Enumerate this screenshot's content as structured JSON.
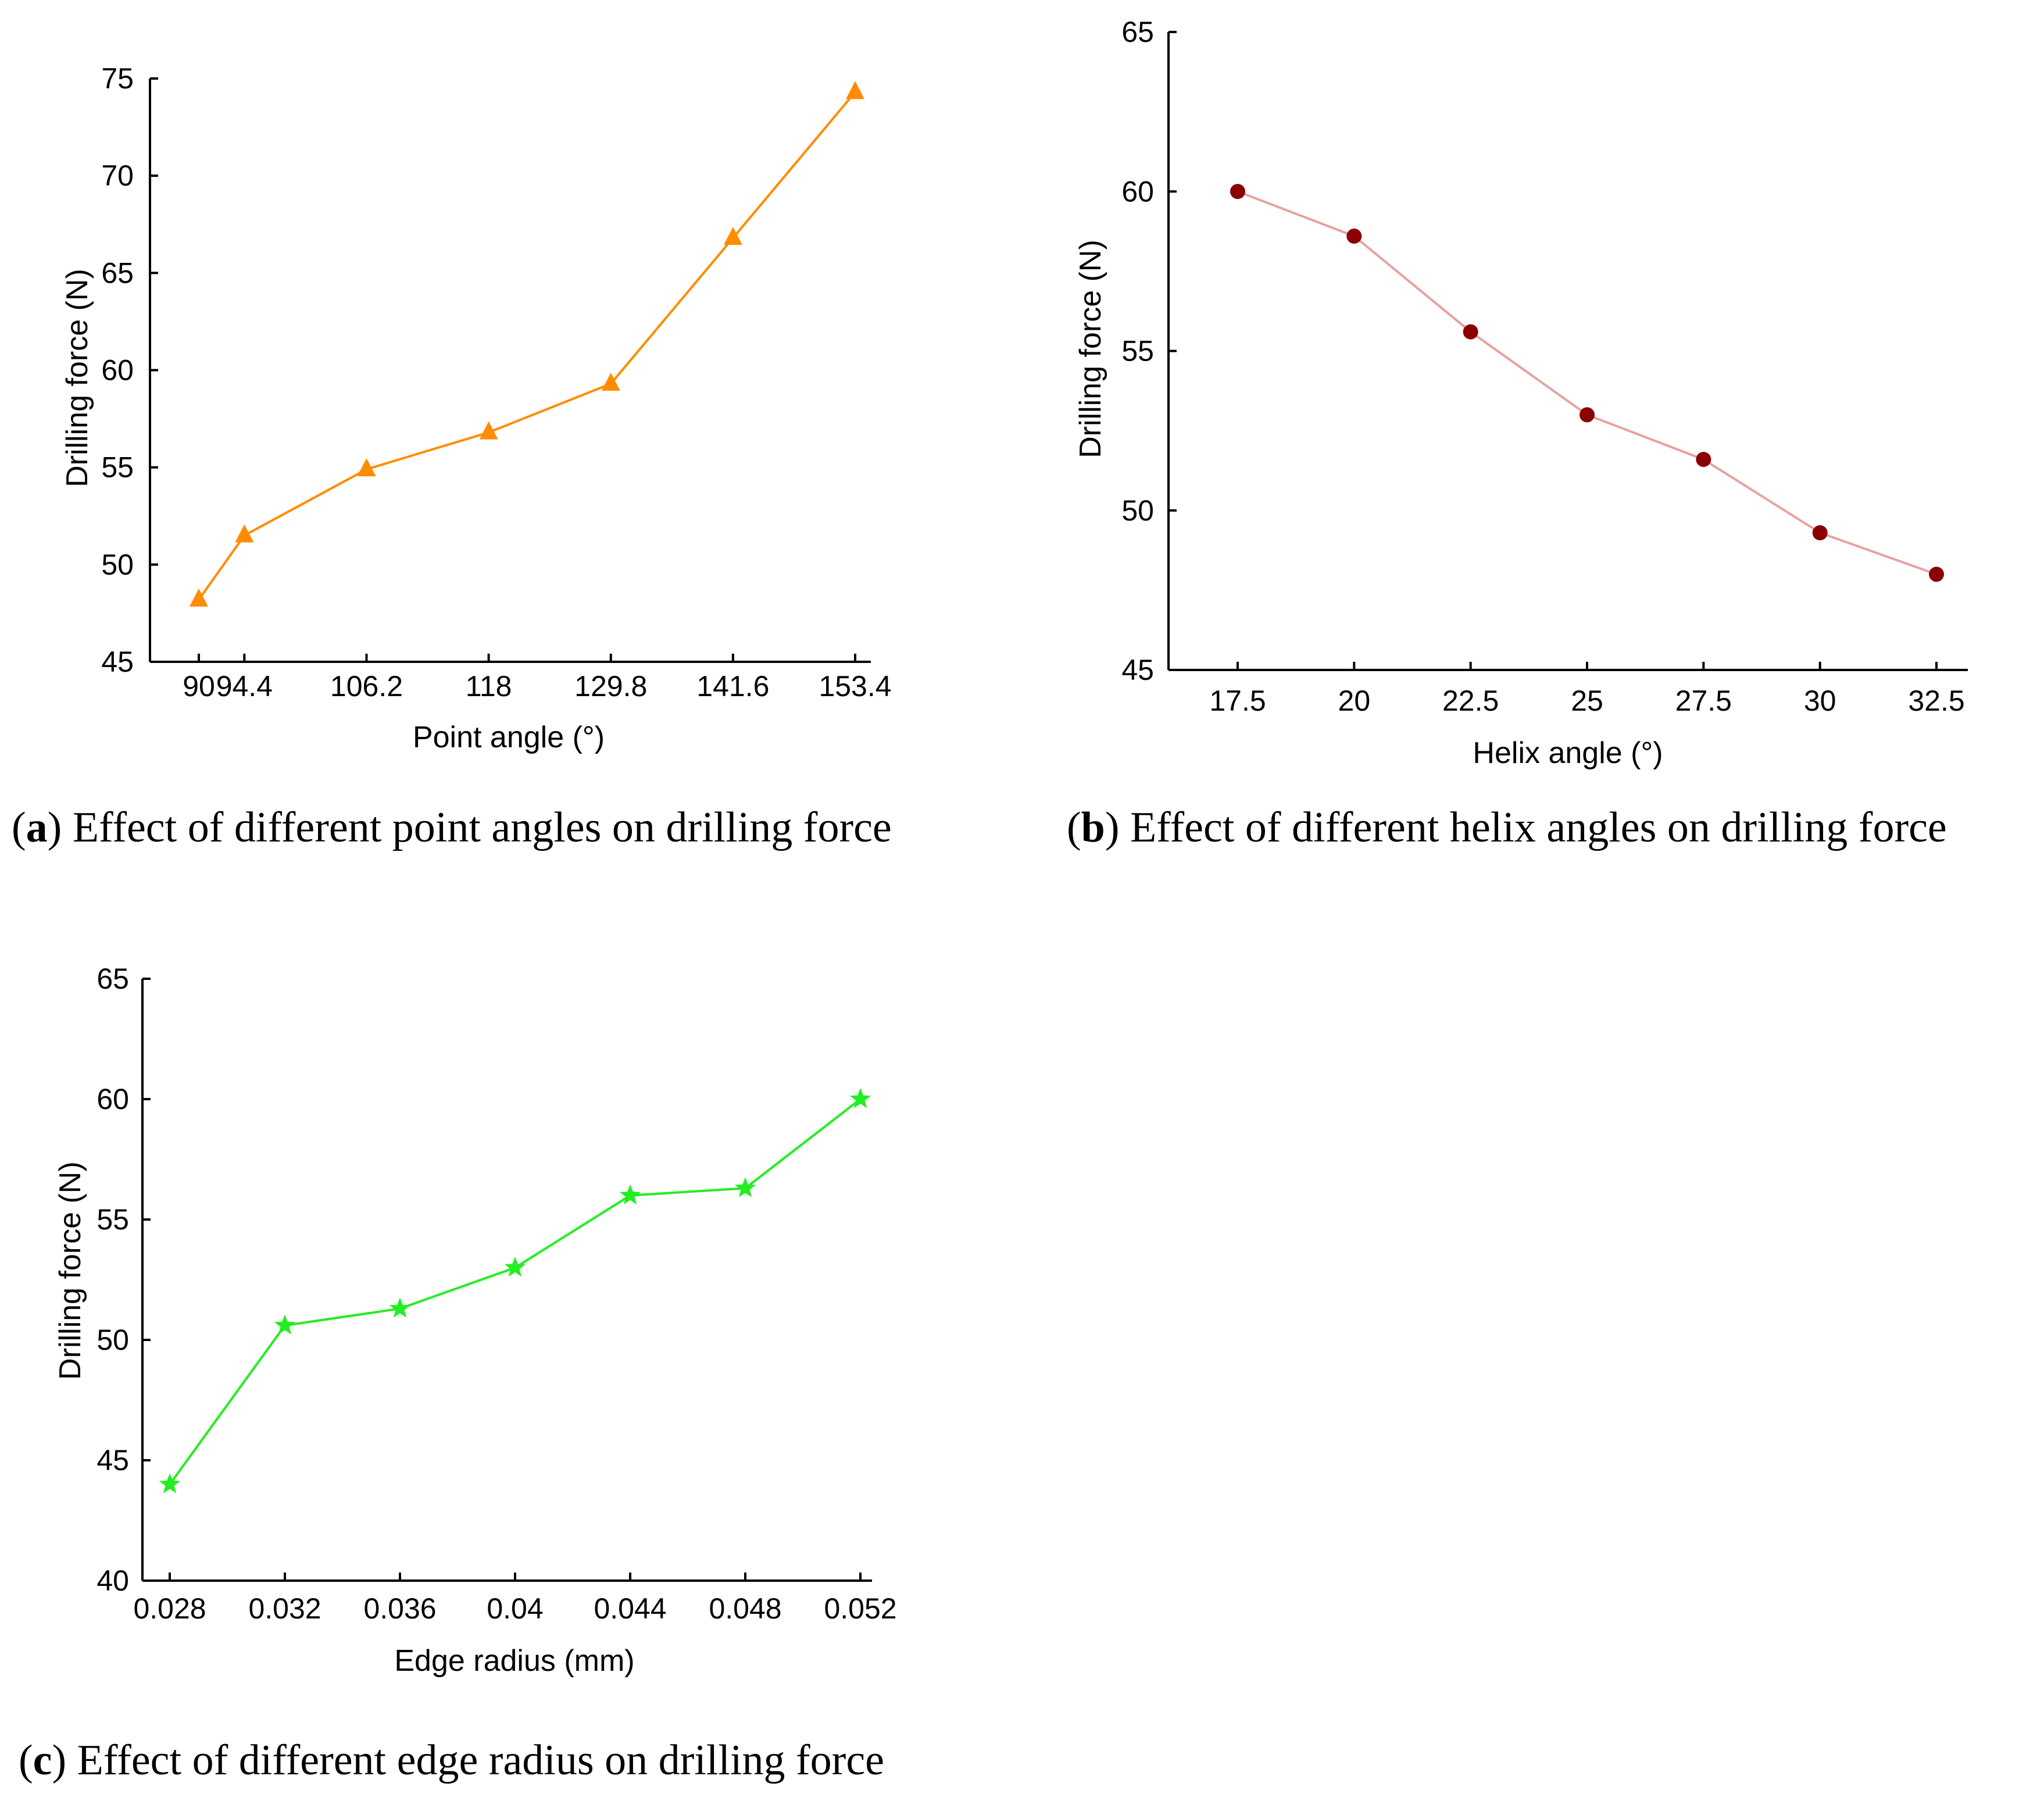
{
  "chart_data": [
    {
      "id": "a",
      "type": "line",
      "marker": "triangle",
      "color": "#ff8c00",
      "xlabel": "Point angle (°)",
      "ylabel": "Drilling force (N)",
      "x": [
        90,
        94.4,
        106.2,
        118,
        129.8,
        141.6,
        153.4
      ],
      "x_tick_labels": [
        "90",
        "94.4",
        "106.2",
        "118",
        "129.8",
        "141.6",
        "153.4"
      ],
      "values": [
        48.2,
        51.5,
        54.9,
        56.8,
        59.3,
        66.8,
        74.3
      ],
      "ylim": [
        45,
        75
      ],
      "yticks": [
        45,
        50,
        55,
        60,
        65,
        70,
        75
      ],
      "caption_letter": "a",
      "caption_text": " Effect of different point angles on drilling force"
    },
    {
      "id": "b",
      "type": "line",
      "marker": "circle",
      "color": "#8b0000",
      "line_color": "#e8a0a0",
      "xlabel": "Helix angle (°)",
      "ylabel": "Drilling force (N)",
      "x": [
        17.5,
        20,
        22.5,
        25,
        27.5,
        30,
        32.5
      ],
      "x_tick_labels": [
        "17.5",
        "20",
        "22.5",
        "25",
        "27.5",
        "30",
        "32.5"
      ],
      "values": [
        60.0,
        58.6,
        55.6,
        53.0,
        51.6,
        49.3,
        48.0
      ],
      "ylim": [
        45,
        65
      ],
      "yticks": [
        45,
        50,
        55,
        60,
        65
      ],
      "caption_letter": "b",
      "caption_text": " Effect of different helix angles on drilling force"
    },
    {
      "id": "c",
      "type": "line",
      "marker": "star",
      "color": "#22ee22",
      "xlabel": "Edge radius (mm)",
      "ylabel": "Drilling force (N)",
      "x": [
        0.028,
        0.032,
        0.036,
        0.04,
        0.044,
        0.048,
        0.052
      ],
      "x_tick_labels": [
        "0.028",
        "0.032",
        "0.036",
        "0.04",
        "0.044",
        "0.048",
        "0.052"
      ],
      "values": [
        44.0,
        50.6,
        51.3,
        53.0,
        56.0,
        56.3,
        60.0
      ],
      "ylim": [
        40,
        65
      ],
      "yticks": [
        40,
        45,
        50,
        55,
        60,
        65
      ],
      "caption_letter": "c",
      "caption_text": " Effect of different edge radius on drilling force"
    }
  ]
}
